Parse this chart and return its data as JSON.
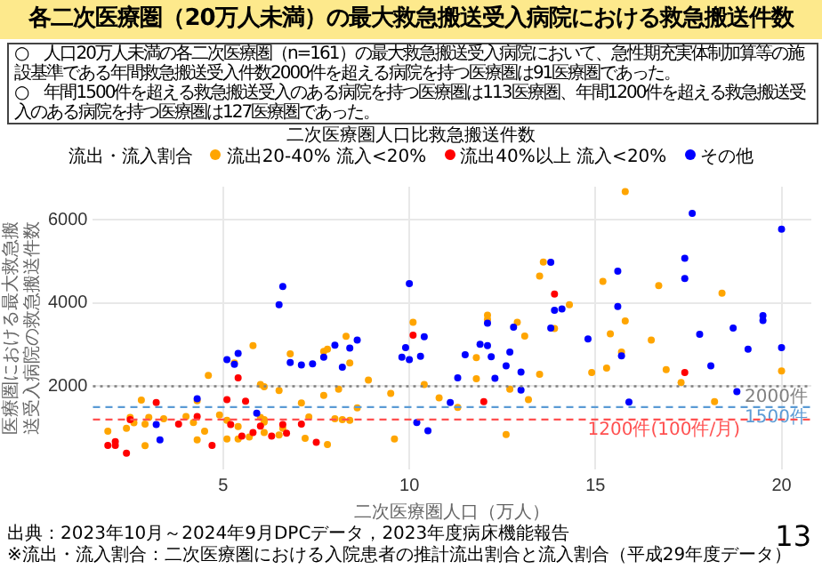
{
  "chart_data": {
    "type": "scatter",
    "title": "各二次医療圏（20万人未満）の最大救急搬送受入病院における救急搬送件数",
    "subtitle": "二次医療圏人口比救急搬送件数",
    "xlabel": "二次医療圏人口（万人）",
    "ylabel": "医療圏における最大救急搬送受入病院の救急搬送件数",
    "legend_title": "流出・流入割合",
    "xlim": [
      1.5,
      20.8
    ],
    "xticks": [
      5,
      10,
      15,
      20
    ],
    "ylim": [
      0,
      6800
    ],
    "yticks": [
      2000,
      4000,
      6000
    ],
    "grid": true,
    "legend": "top right",
    "marker": "circle",
    "annotations": [
      "○　人口20万人未満の各二次医療圏（n=161）の最大救急搬送受入病院において、急性期充実体制加算等の施設基準である年間救急搬送受入件数2000件を超える病院を持つ医療圏は91医療圏であった。",
      "○　年間1500件を超える救急搬送受入のある病院を持つ医療圏は113医療圏、年間1200件を超える救急搬送受入のある病院を持つ医療圏は127医療圏であった。",
      "出典：2023年10月～2024年9月DPCデータ，2023年度病床機能報告",
      "※流出・流入割合：二次医療圏における入院患者の推計流出割合と流入割合（平成29年度データ）",
      "13"
    ],
    "ref_lines": [
      {
        "axis": "y",
        "value": 2000,
        "label": "2000件",
        "color": "#808080",
        "line_style": "dotted"
      },
      {
        "axis": "y",
        "value": 1500,
        "label": "1500件",
        "color": "#5b9bd5",
        "line_style": "dashed"
      },
      {
        "axis": "y",
        "value": 1200,
        "label": "1200件(100件/月)",
        "color": "#ff5050",
        "line_style": "dashed"
      }
    ],
    "series": [
      {
        "name": "流出20-40% 流入<20%",
        "color": "#ffa500",
        "x": [
          10.1,
          5.8,
          5.3,
          6.8,
          7.7,
          7.8,
          8.3,
          8.4,
          15.8,
          16.7,
          18.4,
          13.6,
          13.5,
          15.2,
          14.3,
          15.8,
          12.1,
          12.1,
          12.9,
          13.1,
          13.9,
          15.4,
          16.5,
          11.8,
          15.7,
          15.3,
          4.6,
          6.0,
          6.1,
          6.5,
          8.1,
          8.9,
          9.5,
          10.4,
          10.8,
          2.8,
          4.3,
          7.1,
          7.7,
          8.6,
          2.5,
          2.6,
          2.9,
          3.0,
          3.4,
          4.0,
          4.2,
          4.9,
          5.1,
          5.4,
          6.0,
          6.1,
          6.1,
          7.3,
          8.0,
          8.2,
          8.4,
          2.4,
          1.9,
          2.9,
          4.3,
          5.1,
          5.4,
          5.7,
          6.1,
          6.5,
          6.6,
          7.2,
          7.8,
          9.6,
          4.5,
          11.8,
          13.5,
          14.9,
          16.9,
          17.3,
          20.0,
          12.7,
          13.2,
          11.3,
          18.2,
          12.6
        ],
        "values": [
          3540,
          2980,
          2560,
          2780,
          2840,
          2890,
          3200,
          2560,
          6680,
          4420,
          4240,
          4990,
          4650,
          4520,
          3960,
          3570,
          3710,
          3610,
          3540,
          3210,
          3390,
          3260,
          3110,
          2690,
          2820,
          2440,
          2260,
          2040,
          1990,
          1900,
          1930,
          2150,
          1830,
          2040,
          1720,
          1670,
          1650,
          1600,
          1780,
          1480,
          1250,
          1120,
          1090,
          1250,
          1220,
          1270,
          1130,
          1310,
          1180,
          1030,
          1250,
          1200,
          1140,
          1260,
          1220,
          1200,
          1180,
          990,
          920,
          570,
          710,
          730,
          730,
          780,
          890,
          830,
          990,
          750,
          600,
          730,
          920,
          2180,
          2290,
          2330,
          2400,
          2090,
          2370,
          1930,
          1680,
          1490,
          1630,
          840
        ]
      },
      {
        "name": "流出40%以上 流入<20%",
        "color": "#ff0000",
        "x": [
          10.1,
          13.9,
          5.4,
          3.2,
          5.1,
          5.6,
          2.5,
          4.3,
          3.8,
          5.2,
          6.0,
          7.1,
          2.1,
          1.9,
          2.1,
          2.4,
          4.7,
          5.5,
          5.8,
          6.3,
          6.7,
          6.6,
          7.5,
          17.4,
          12.0
        ],
        "values": [
          3230,
          4220,
          2200,
          1610,
          1680,
          1640,
          1200,
          1270,
          1090,
          1080,
          1040,
          1090,
          670,
          580,
          580,
          390,
          580,
          800,
          890,
          800,
          870,
          1080,
          650,
          2330,
          1630
        ]
      },
      {
        "name": "その他",
        "color": "#0000ff",
        "x": [
          6.6,
          6.5,
          10.0,
          10.4,
          5.4,
          5.1,
          6.8,
          7.1,
          7.4,
          7.7,
          8.0,
          8.6,
          8.4,
          8.2,
          9.9,
          9.8,
          10.0,
          10.3,
          17.6,
          20.0,
          17.4,
          17.4,
          13.8,
          15.6,
          14.1,
          13.9,
          15.6,
          12.1,
          12.8,
          13.8,
          14.8,
          17.8,
          18.7,
          19.5,
          19.5,
          19.1,
          20.0,
          11.9,
          12.1,
          12.7,
          11.5,
          12.2,
          12.6,
          15.7,
          18.1,
          5.3,
          4.3,
          3.2,
          5.9,
          3.3,
          10.2,
          10.5,
          11.3,
          12.3,
          13.0,
          13.0,
          11.1,
          15.9,
          18.8
        ],
        "values": [
          4400,
          3960,
          4470,
          3190,
          2790,
          2640,
          2570,
          2510,
          2540,
          2700,
          2990,
          3110,
          2920,
          2460,
          2930,
          2700,
          2640,
          2720,
          6160,
          5780,
          5080,
          4590,
          4980,
          4770,
          3860,
          3830,
          3920,
          3520,
          3420,
          3400,
          3140,
          3250,
          3400,
          3700,
          3580,
          2890,
          2930,
          3010,
          2980,
          2820,
          2760,
          2710,
          2490,
          2730,
          2490,
          2530,
          1700,
          1080,
          1350,
          710,
          1130,
          930,
          2200,
          2190,
          2340,
          1910,
          1610,
          1620,
          1870
        ]
      }
    ]
  }
}
